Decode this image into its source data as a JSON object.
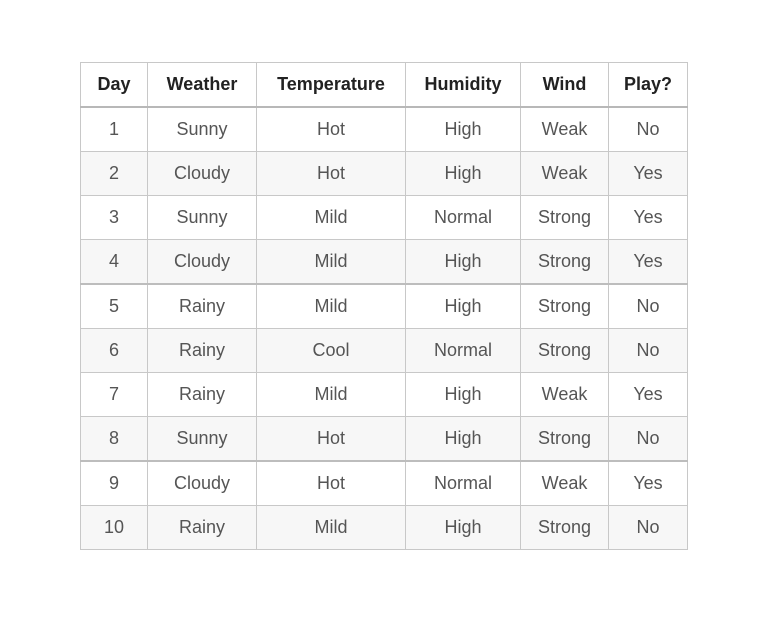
{
  "table": {
    "headers": [
      "Day",
      "Weather",
      "Temperature",
      "Humidity",
      "Wind",
      "Play?"
    ],
    "rows": [
      [
        "1",
        "Sunny",
        "Hot",
        "High",
        "Weak",
        "No"
      ],
      [
        "2",
        "Cloudy",
        "Hot",
        "High",
        "Weak",
        "Yes"
      ],
      [
        "3",
        "Sunny",
        "Mild",
        "Normal",
        "Strong",
        "Yes"
      ],
      [
        "4",
        "Cloudy",
        "Mild",
        "High",
        "Strong",
        "Yes"
      ],
      [
        "5",
        "Rainy",
        "Mild",
        "High",
        "Strong",
        "No"
      ],
      [
        "6",
        "Rainy",
        "Cool",
        "Normal",
        "Strong",
        "No"
      ],
      [
        "7",
        "Rainy",
        "Mild",
        "High",
        "Weak",
        "Yes"
      ],
      [
        "8",
        "Sunny",
        "Hot",
        "High",
        "Strong",
        "No"
      ],
      [
        "9",
        "Cloudy",
        "Hot",
        "Normal",
        "Weak",
        "Yes"
      ],
      [
        "10",
        "Rainy",
        "Mild",
        "High",
        "Strong",
        "No"
      ]
    ]
  }
}
